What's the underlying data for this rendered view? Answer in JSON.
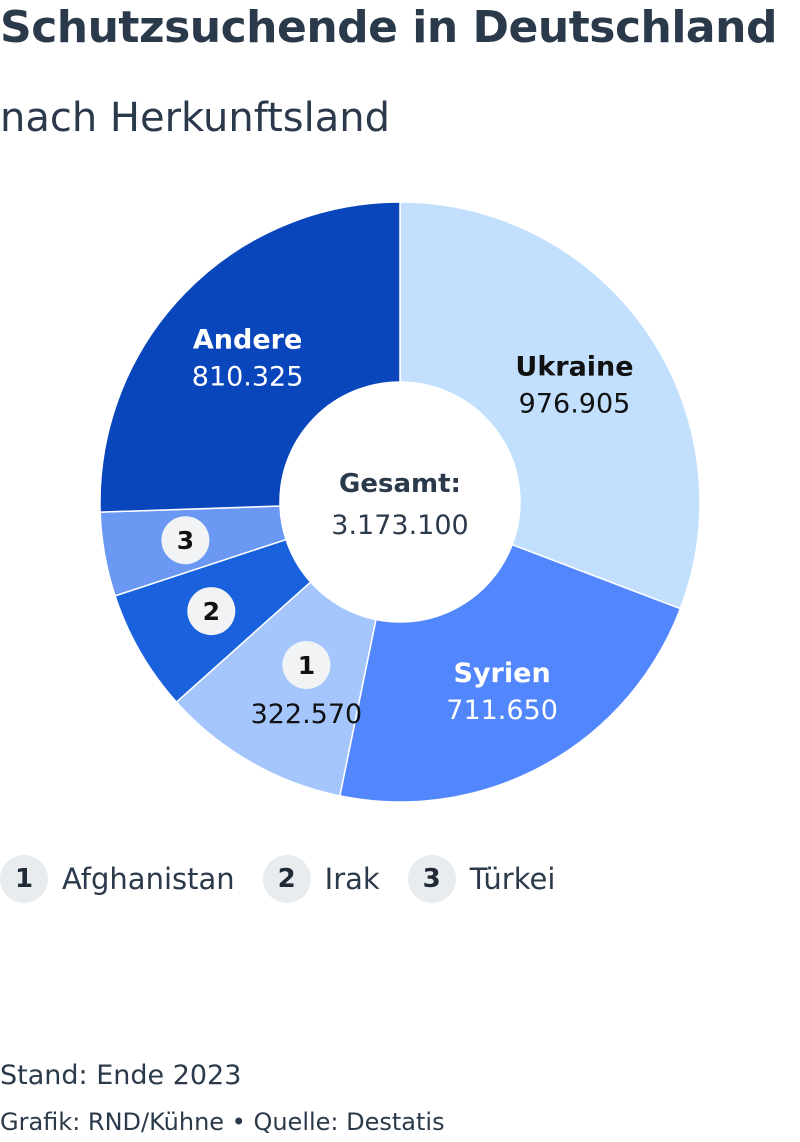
{
  "title": "Schutzsuchende in Deutschland",
  "subtitle": "nach Herkunftsland",
  "chart_data": {
    "type": "pie",
    "variant": "donut",
    "title": "Schutzsuchende in Deutschland",
    "subtitle": "nach Herkunftsland",
    "center_label": "Gesamt:",
    "center_value": "3.173.100",
    "slices": [
      {
        "label": "Ukraine",
        "value": 976905,
        "value_text": "976.905",
        "color": "#c2e0fd",
        "label_color": "#111111",
        "show_label": true
      },
      {
        "label": "Syrien",
        "value": 711650,
        "value_text": "711.650",
        "color": "#5286fd",
        "label_color": "#ffffff",
        "show_label": true
      },
      {
        "label": "Afghanistan",
        "value": 322570,
        "value_text": "322.570",
        "color": "#a4c6fd",
        "label_color": "#111111",
        "badge": "1",
        "show_label": true
      },
      {
        "label": "Irak",
        "value": 208000,
        "value_text": "",
        "color": "#1a62dd",
        "label_color": "#ffffff",
        "badge": "2",
        "show_label": false
      },
      {
        "label": "Türkei",
        "value": 143650,
        "value_text": "",
        "color": "#6a98f3",
        "label_color": "#ffffff",
        "badge": "3",
        "show_label": false
      },
      {
        "label": "Andere",
        "value": 810325,
        "value_text": "810.325",
        "color": "#0a46bb",
        "label_color": "#ffffff",
        "show_label": true
      }
    ]
  },
  "legend": [
    {
      "badge": "1",
      "label": "Afghanistan"
    },
    {
      "badge": "2",
      "label": "Irak"
    },
    {
      "badge": "3",
      "label": "Türkei"
    }
  ],
  "footer": {
    "stand": "Stand: Ende 2023",
    "source": "Grafik: RND/Kühne • Quelle: Destatis"
  }
}
